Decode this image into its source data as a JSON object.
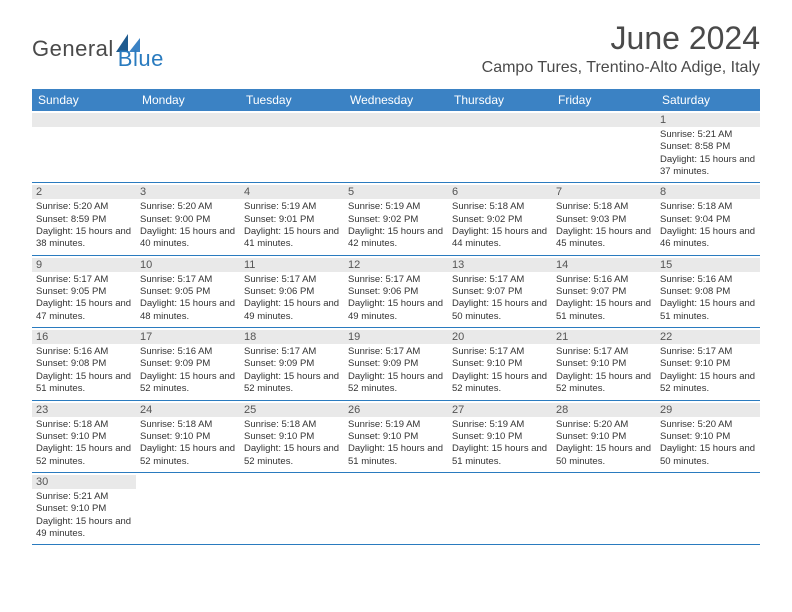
{
  "logo": {
    "part1": "General",
    "part2": "Blue"
  },
  "title": "June 2024",
  "location": "Campo Tures, Trentino-Alto Adige, Italy",
  "dayNames": [
    "Sunday",
    "Monday",
    "Tuesday",
    "Wednesday",
    "Thursday",
    "Friday",
    "Saturday"
  ],
  "colors": {
    "headerBg": "#3b82c4",
    "headerText": "#ffffff",
    "accent": "#2a7bbf",
    "dayNumBg": "#e9e9e9"
  },
  "weeks": [
    [
      null,
      null,
      null,
      null,
      null,
      null,
      {
        "n": "1",
        "sunrise": "5:21 AM",
        "sunset": "8:58 PM",
        "daylight": "15 hours and 37 minutes."
      }
    ],
    [
      {
        "n": "2",
        "sunrise": "5:20 AM",
        "sunset": "8:59 PM",
        "daylight": "15 hours and 38 minutes."
      },
      {
        "n": "3",
        "sunrise": "5:20 AM",
        "sunset": "9:00 PM",
        "daylight": "15 hours and 40 minutes."
      },
      {
        "n": "4",
        "sunrise": "5:19 AM",
        "sunset": "9:01 PM",
        "daylight": "15 hours and 41 minutes."
      },
      {
        "n": "5",
        "sunrise": "5:19 AM",
        "sunset": "9:02 PM",
        "daylight": "15 hours and 42 minutes."
      },
      {
        "n": "6",
        "sunrise": "5:18 AM",
        "sunset": "9:02 PM",
        "daylight": "15 hours and 44 minutes."
      },
      {
        "n": "7",
        "sunrise": "5:18 AM",
        "sunset": "9:03 PM",
        "daylight": "15 hours and 45 minutes."
      },
      {
        "n": "8",
        "sunrise": "5:18 AM",
        "sunset": "9:04 PM",
        "daylight": "15 hours and 46 minutes."
      }
    ],
    [
      {
        "n": "9",
        "sunrise": "5:17 AM",
        "sunset": "9:05 PM",
        "daylight": "15 hours and 47 minutes."
      },
      {
        "n": "10",
        "sunrise": "5:17 AM",
        "sunset": "9:05 PM",
        "daylight": "15 hours and 48 minutes."
      },
      {
        "n": "11",
        "sunrise": "5:17 AM",
        "sunset": "9:06 PM",
        "daylight": "15 hours and 49 minutes."
      },
      {
        "n": "12",
        "sunrise": "5:17 AM",
        "sunset": "9:06 PM",
        "daylight": "15 hours and 49 minutes."
      },
      {
        "n": "13",
        "sunrise": "5:17 AM",
        "sunset": "9:07 PM",
        "daylight": "15 hours and 50 minutes."
      },
      {
        "n": "14",
        "sunrise": "5:16 AM",
        "sunset": "9:07 PM",
        "daylight": "15 hours and 51 minutes."
      },
      {
        "n": "15",
        "sunrise": "5:16 AM",
        "sunset": "9:08 PM",
        "daylight": "15 hours and 51 minutes."
      }
    ],
    [
      {
        "n": "16",
        "sunrise": "5:16 AM",
        "sunset": "9:08 PM",
        "daylight": "15 hours and 51 minutes."
      },
      {
        "n": "17",
        "sunrise": "5:16 AM",
        "sunset": "9:09 PM",
        "daylight": "15 hours and 52 minutes."
      },
      {
        "n": "18",
        "sunrise": "5:17 AM",
        "sunset": "9:09 PM",
        "daylight": "15 hours and 52 minutes."
      },
      {
        "n": "19",
        "sunrise": "5:17 AM",
        "sunset": "9:09 PM",
        "daylight": "15 hours and 52 minutes."
      },
      {
        "n": "20",
        "sunrise": "5:17 AM",
        "sunset": "9:10 PM",
        "daylight": "15 hours and 52 minutes."
      },
      {
        "n": "21",
        "sunrise": "5:17 AM",
        "sunset": "9:10 PM",
        "daylight": "15 hours and 52 minutes."
      },
      {
        "n": "22",
        "sunrise": "5:17 AM",
        "sunset": "9:10 PM",
        "daylight": "15 hours and 52 minutes."
      }
    ],
    [
      {
        "n": "23",
        "sunrise": "5:18 AM",
        "sunset": "9:10 PM",
        "daylight": "15 hours and 52 minutes."
      },
      {
        "n": "24",
        "sunrise": "5:18 AM",
        "sunset": "9:10 PM",
        "daylight": "15 hours and 52 minutes."
      },
      {
        "n": "25",
        "sunrise": "5:18 AM",
        "sunset": "9:10 PM",
        "daylight": "15 hours and 52 minutes."
      },
      {
        "n": "26",
        "sunrise": "5:19 AM",
        "sunset": "9:10 PM",
        "daylight": "15 hours and 51 minutes."
      },
      {
        "n": "27",
        "sunrise": "5:19 AM",
        "sunset": "9:10 PM",
        "daylight": "15 hours and 51 minutes."
      },
      {
        "n": "28",
        "sunrise": "5:20 AM",
        "sunset": "9:10 PM",
        "daylight": "15 hours and 50 minutes."
      },
      {
        "n": "29",
        "sunrise": "5:20 AM",
        "sunset": "9:10 PM",
        "daylight": "15 hours and 50 minutes."
      }
    ],
    [
      {
        "n": "30",
        "sunrise": "5:21 AM",
        "sunset": "9:10 PM",
        "daylight": "15 hours and 49 minutes."
      },
      null,
      null,
      null,
      null,
      null,
      null
    ]
  ],
  "labels": {
    "sunrise": "Sunrise:",
    "sunset": "Sunset:",
    "daylight": "Daylight:"
  }
}
